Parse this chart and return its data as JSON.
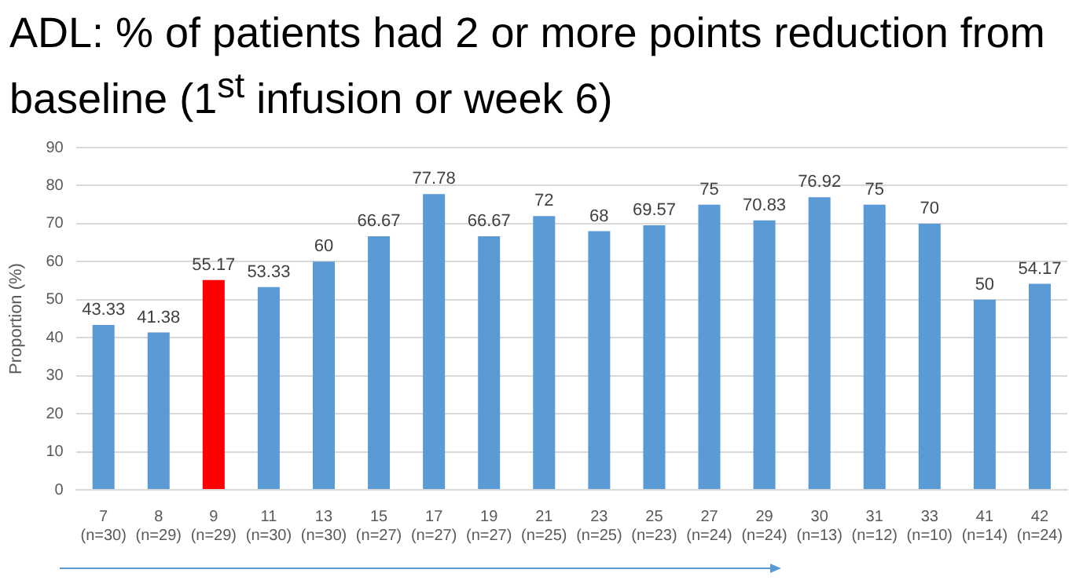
{
  "chart_data": {
    "type": "bar",
    "title": "ADL: % of patients had 2 or more points reduction from baseline (1$^{st}$ infusion or week 6)",
    "ylabel": "Proportion (%)",
    "categories": [
      "7\n(n=30)",
      "8\n(n=29)",
      "9\n(n=29)",
      "11\n(n=30)",
      "13\n(n=30)",
      "15\n(n=27)",
      "17\n(n=27)",
      "19\n(n=27)",
      "21\n(n=25)",
      "23\n(n=25)",
      "25\n(n=23)",
      "27\n(n=24)",
      "29\n(n=24)",
      "30\n(n=13)",
      "31\n(n=12)",
      "33\n(n=10)",
      "41\n(n=14)",
      "42\n(n=24)"
    ],
    "values": [
      43.33,
      41.38,
      55.17,
      53.33,
      60,
      66.67,
      77.78,
      66.67,
      72,
      68,
      69.57,
      75,
      70.83,
      76.92,
      75,
      70,
      50,
      54.17
    ],
    "colors": [
      "#5b9bd5",
      "#5b9bd5",
      "#ff0000",
      "#5b9bd5",
      "#5b9bd5",
      "#5b9bd5",
      "#5b9bd5",
      "#5b9bd5",
      "#5b9bd5",
      "#5b9bd5",
      "#5b9bd5",
      "#5b9bd5",
      "#5b9bd5",
      "#5b9bd5",
      "#5b9bd5",
      "#5b9bd5",
      "#5b9bd5",
      "#5b9bd5"
    ],
    "ylim": [
      0,
      90
    ],
    "yticks": [
      0,
      10,
      20,
      30,
      40,
      50,
      60,
      70,
      80,
      90
    ],
    "grid": "y",
    "data_labels": true,
    "legend": false
  }
}
